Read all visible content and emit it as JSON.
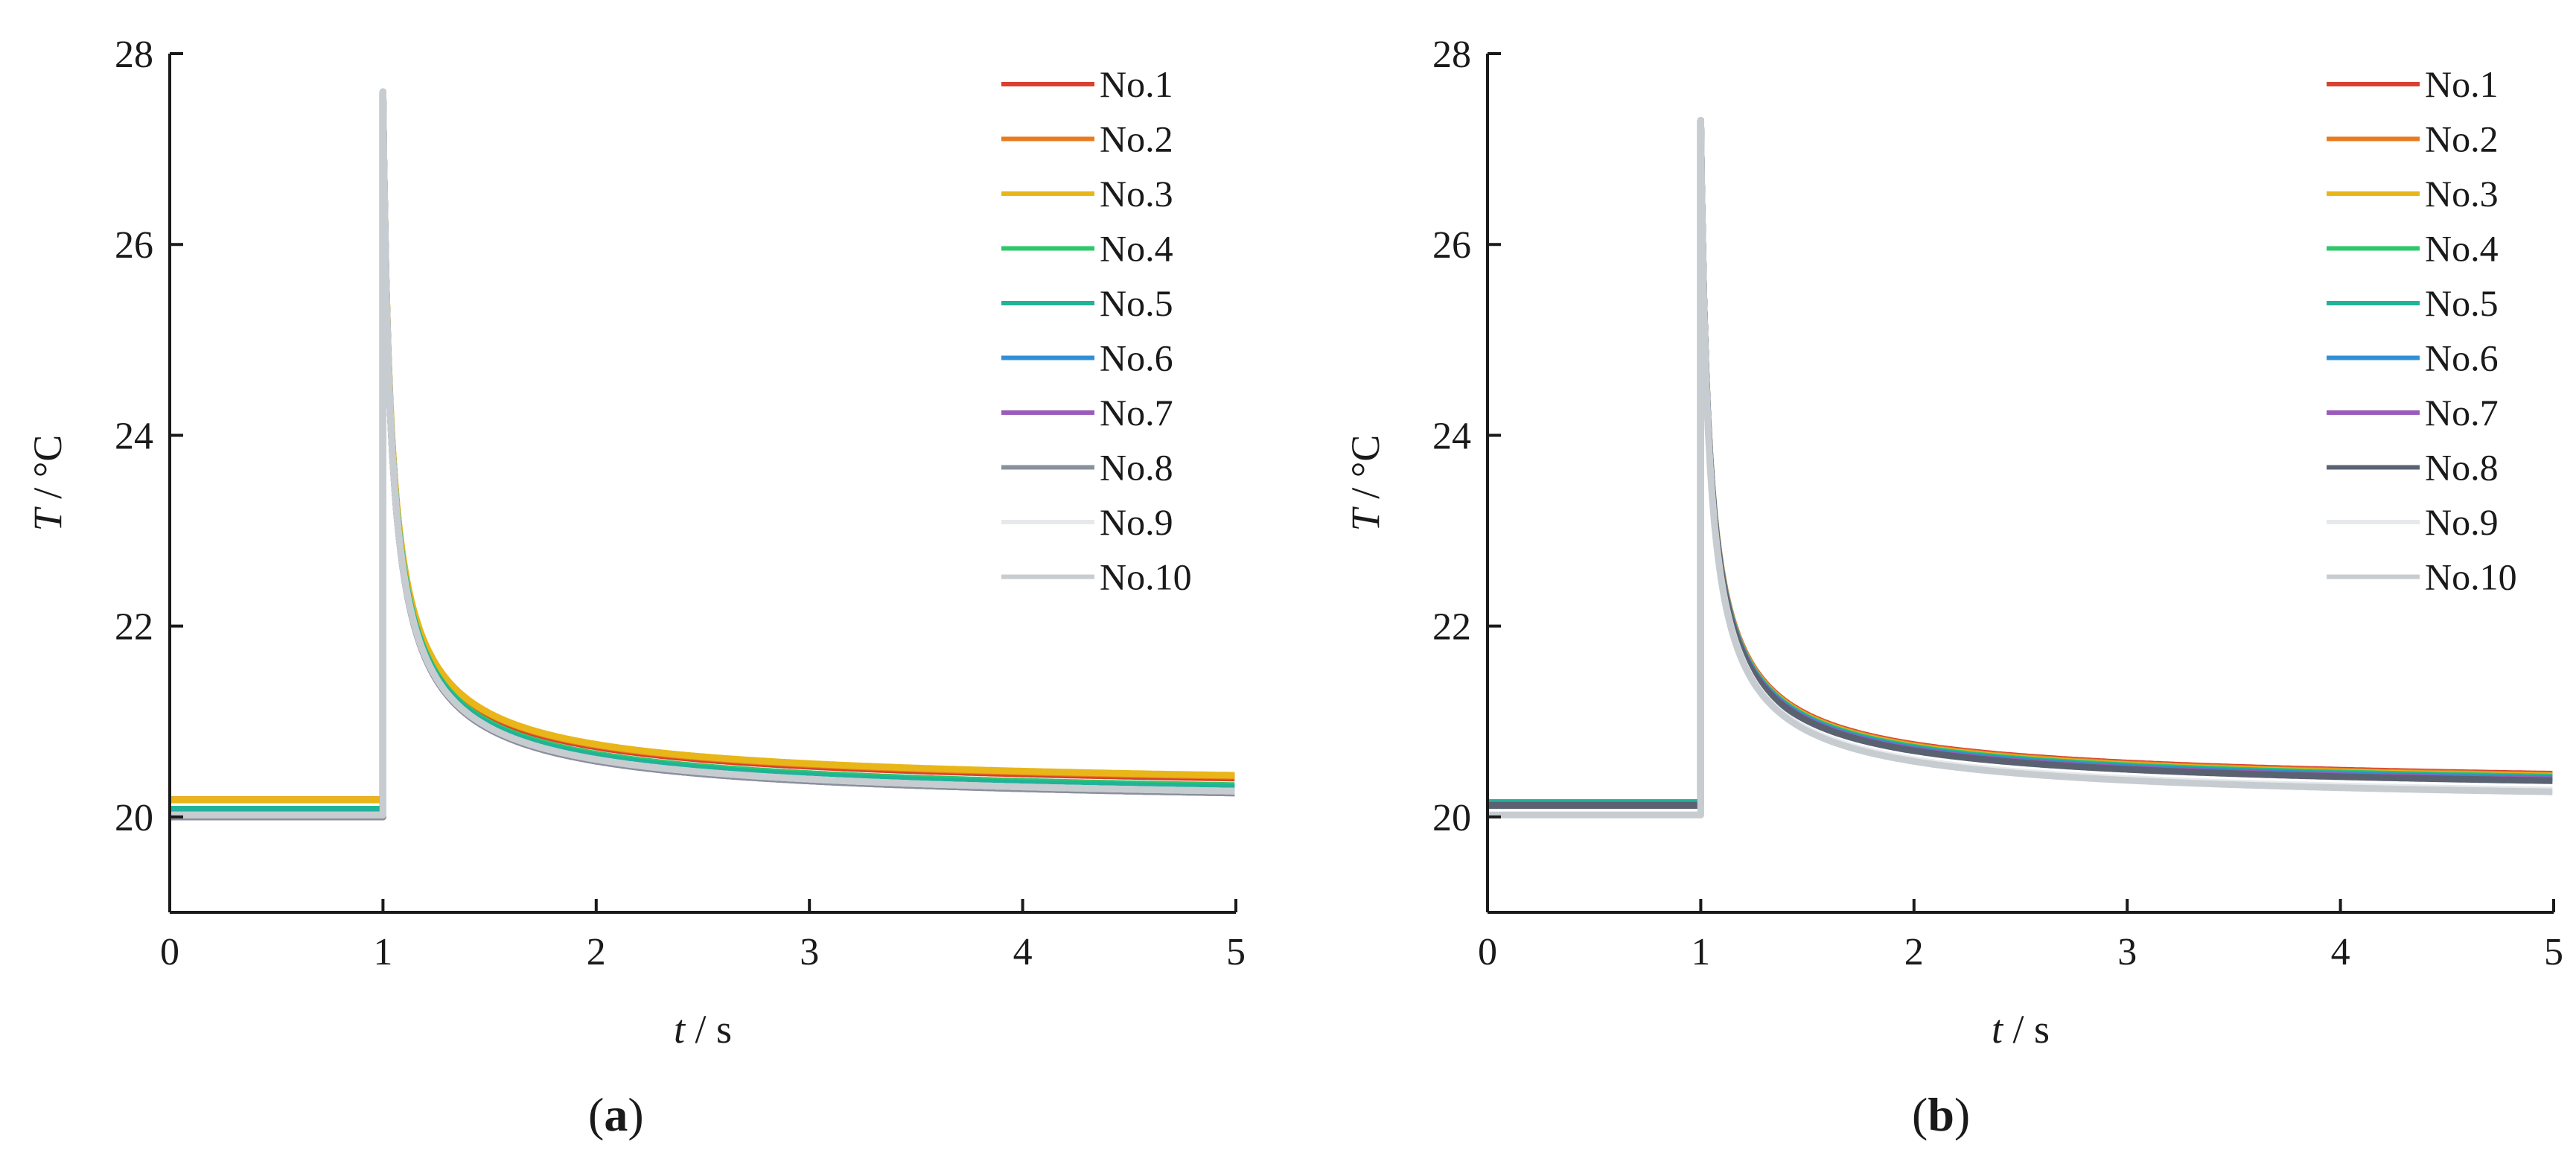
{
  "chart_data": [
    {
      "type": "line",
      "panel": "(a)",
      "panel_letter": "a",
      "xlabel_var": "t",
      "xlabel_unit": " / s",
      "ylabel_var": "T",
      "ylabel_unit": " / °C",
      "xlim": [
        0,
        5
      ],
      "ylim": [
        19,
        28
      ],
      "xticks": [
        "0",
        "1",
        "2",
        "3",
        "4",
        "5"
      ],
      "yticks": [
        "20",
        "22",
        "24",
        "26",
        "28"
      ],
      "grid": false,
      "legend_position": "top-right",
      "pulse_time": 1.0,
      "series": [
        {
          "name": "No.1",
          "color": "#d9402f",
          "baseline": 20.18,
          "peak": 27.6,
          "final": 20.22
        },
        {
          "name": "No.2",
          "color": "#ea7a1e",
          "baseline": 20.18,
          "peak": 27.6,
          "final": 20.24
        },
        {
          "name": "No.3",
          "color": "#e8b618",
          "baseline": 20.18,
          "peak": 27.6,
          "final": 20.25
        },
        {
          "name": "No.4",
          "color": "#2ec76a",
          "baseline": 20.08,
          "peak": 27.6,
          "final": 20.14
        },
        {
          "name": "No.5",
          "color": "#21b29a",
          "baseline": 20.08,
          "peak": 27.6,
          "final": 20.12
        },
        {
          "name": "No.6",
          "color": "#2f8fd6",
          "baseline": 20.0,
          "peak": 27.6,
          "final": 20.07
        },
        {
          "name": "No.7",
          "color": "#9a5bbd",
          "baseline": 20.0,
          "peak": 27.6,
          "final": 20.06
        },
        {
          "name": "No.8",
          "color": "#8a909c",
          "baseline": 20.0,
          "peak": 27.6,
          "final": 20.06
        },
        {
          "name": "No.9",
          "color": "#e6e9ec",
          "baseline": 20.02,
          "peak": 27.6,
          "final": 20.08
        },
        {
          "name": "No.10",
          "color": "#c7ccd0",
          "baseline": 20.02,
          "peak": 27.6,
          "final": 20.08
        }
      ]
    },
    {
      "type": "line",
      "panel": "(b)",
      "panel_letter": "b",
      "xlabel_var": "t",
      "xlabel_unit": " / s",
      "ylabel_var": "T",
      "ylabel_unit": " / °C",
      "xlim": [
        0,
        5
      ],
      "ylim": [
        19,
        28
      ],
      "xticks": [
        "0",
        "1",
        "2",
        "3",
        "4",
        "5"
      ],
      "yticks": [
        "20",
        "22",
        "24",
        "26",
        "28"
      ],
      "grid": false,
      "legend_position": "top-right",
      "pulse_time": 1.0,
      "series": [
        {
          "name": "No.1",
          "color": "#d9402f",
          "baseline": 20.15,
          "peak": 27.3,
          "final": 20.27
        },
        {
          "name": "No.2",
          "color": "#ea7a1e",
          "baseline": 20.15,
          "peak": 27.3,
          "final": 20.26
        },
        {
          "name": "No.3",
          "color": "#e8b618",
          "baseline": 20.15,
          "peak": 27.3,
          "final": 20.25
        },
        {
          "name": "No.4",
          "color": "#2ec76a",
          "baseline": 20.15,
          "peak": 27.3,
          "final": 20.24
        },
        {
          "name": "No.5",
          "color": "#21b29a",
          "baseline": 20.15,
          "peak": 27.3,
          "final": 20.23
        },
        {
          "name": "No.6",
          "color": "#2f8fd6",
          "baseline": 20.13,
          "peak": 27.3,
          "final": 20.22
        },
        {
          "name": "No.7",
          "color": "#9a5bbd",
          "baseline": 20.12,
          "peak": 27.3,
          "final": 20.21
        },
        {
          "name": "No.8",
          "color": "#5a6272",
          "baseline": 20.12,
          "peak": 27.3,
          "final": 20.2
        },
        {
          "name": "No.9",
          "color": "#e6e9ec",
          "baseline": 20.02,
          "peak": 27.3,
          "final": 20.1
        },
        {
          "name": "No.10",
          "color": "#c7ccd0",
          "baseline": 20.02,
          "peak": 27.3,
          "final": 20.08
        }
      ]
    }
  ]
}
